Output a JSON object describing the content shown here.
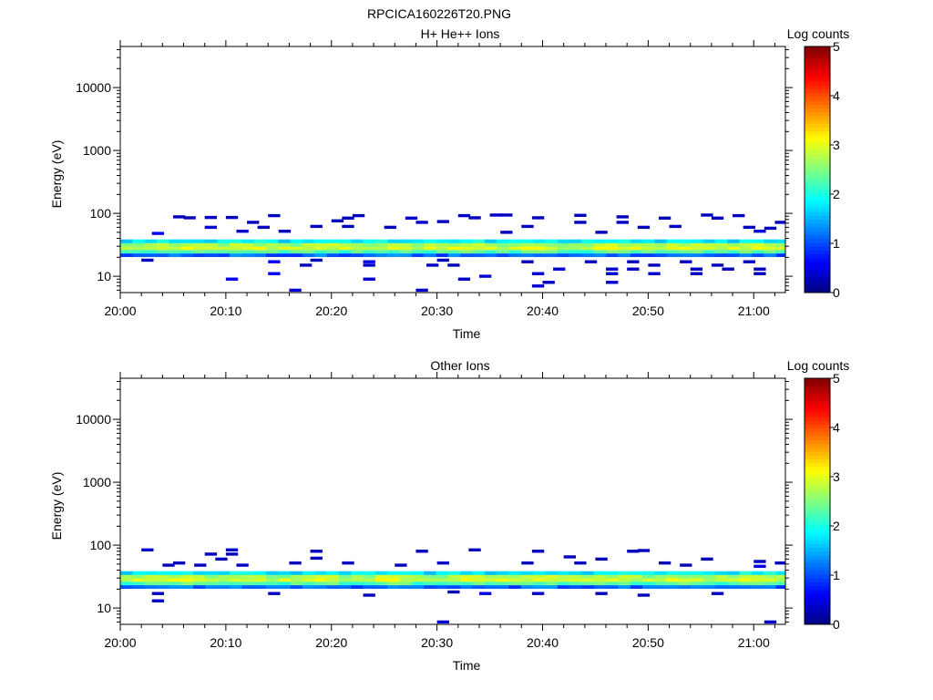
{
  "title": "RPCICA160226T20.PNG",
  "chart_data": [
    {
      "type": "heatmap",
      "title": "H+ He++ Ions",
      "xlabel": "Time",
      "ylabel": "Energy (eV)",
      "x_ticks": [
        "20:00",
        "20:10",
        "20:20",
        "20:30",
        "20:40",
        "20:50",
        "21:00"
      ],
      "x_range": [
        "20:00",
        "21:03"
      ],
      "y_scale": "log",
      "y_range": [
        5.5,
        45000
      ],
      "y_ticks": [
        "10",
        "100",
        "1000",
        "10000"
      ],
      "colorbar": {
        "label": "Log counts",
        "ticks": [
          "0",
          "1",
          "2",
          "3",
          "4",
          "5"
        ],
        "range": [
          0,
          5
        ],
        "colormap": "jet"
      },
      "band": {
        "energy_low_eV": 20,
        "energy_high_eV": 40,
        "peak_energy_eV": 29,
        "peak_log_counts": 3.0
      },
      "sporadic_points": [
        {
          "t": "20:02",
          "e": 18,
          "v": 0.3
        },
        {
          "t": "20:03",
          "e": 48,
          "v": 0.6
        },
        {
          "t": "20:05",
          "e": 88,
          "v": 0.3
        },
        {
          "t": "20:06",
          "e": 85,
          "v": 0.3
        },
        {
          "t": "20:08",
          "e": 86,
          "v": 0.3
        },
        {
          "t": "20:08",
          "e": 60,
          "v": 0.4
        },
        {
          "t": "20:10",
          "e": 9,
          "v": 0.6
        },
        {
          "t": "20:10",
          "e": 86,
          "v": 0.3
        },
        {
          "t": "20:11",
          "e": 52,
          "v": 0.4
        },
        {
          "t": "20:12",
          "e": 72,
          "v": 0.3
        },
        {
          "t": "20:13",
          "e": 60,
          "v": 0.3
        },
        {
          "t": "20:14",
          "e": 92,
          "v": 0.3
        },
        {
          "t": "20:14",
          "e": 17,
          "v": 0.6
        },
        {
          "t": "20:14",
          "e": 11,
          "v": 0.6
        },
        {
          "t": "20:15",
          "e": 52,
          "v": 0.3
        },
        {
          "t": "20:16",
          "e": 6,
          "v": 0.4
        },
        {
          "t": "20:17",
          "e": 15,
          "v": 0.3
        },
        {
          "t": "20:18",
          "e": 62,
          "v": 0.3
        },
        {
          "t": "20:18",
          "e": 18,
          "v": 0.3
        },
        {
          "t": "20:20",
          "e": 76,
          "v": 0.3
        },
        {
          "t": "20:21",
          "e": 84,
          "v": 0.3
        },
        {
          "t": "20:21",
          "e": 62,
          "v": 0.3
        },
        {
          "t": "20:22",
          "e": 92,
          "v": 0.3
        },
        {
          "t": "20:23",
          "e": 17,
          "v": 0.5
        },
        {
          "t": "20:23",
          "e": 15,
          "v": 0.4
        },
        {
          "t": "20:23",
          "e": 9,
          "v": 0.4
        },
        {
          "t": "20:25",
          "e": 60,
          "v": 0.3
        },
        {
          "t": "20:27",
          "e": 84,
          "v": 0.4
        },
        {
          "t": "20:28",
          "e": 72,
          "v": 0.4
        },
        {
          "t": "20:28",
          "e": 6,
          "v": 0.4
        },
        {
          "t": "20:29",
          "e": 15,
          "v": 0.3
        },
        {
          "t": "20:30",
          "e": 74,
          "v": 0.3
        },
        {
          "t": "20:30",
          "e": 18,
          "v": 0.3
        },
        {
          "t": "20:31",
          "e": 15,
          "v": 0.3
        },
        {
          "t": "20:32",
          "e": 9,
          "v": 0.4
        },
        {
          "t": "20:32",
          "e": 92,
          "v": 0.4
        },
        {
          "t": "20:33",
          "e": 85,
          "v": 0.3
        },
        {
          "t": "20:34",
          "e": 10,
          "v": 0.4
        },
        {
          "t": "20:35",
          "e": 94,
          "v": 0.4
        },
        {
          "t": "20:36",
          "e": 94,
          "v": 0.3
        },
        {
          "t": "20:36",
          "e": 50,
          "v": 0.3
        },
        {
          "t": "20:38",
          "e": 17,
          "v": 0.3
        },
        {
          "t": "20:38",
          "e": 62,
          "v": 0.3
        },
        {
          "t": "20:39",
          "e": 85,
          "v": 0.3
        },
        {
          "t": "20:39",
          "e": 11,
          "v": 0.4
        },
        {
          "t": "20:39",
          "e": 7,
          "v": 0.4
        },
        {
          "t": "20:40",
          "e": 8,
          "v": 0.3
        },
        {
          "t": "20:41",
          "e": 13,
          "v": 0.4
        },
        {
          "t": "20:43",
          "e": 93,
          "v": 0.3
        },
        {
          "t": "20:43",
          "e": 72,
          "v": 0.3
        },
        {
          "t": "20:44",
          "e": 17,
          "v": 0.3
        },
        {
          "t": "20:45",
          "e": 50,
          "v": 0.3
        },
        {
          "t": "20:46",
          "e": 13,
          "v": 0.4
        },
        {
          "t": "20:46",
          "e": 11,
          "v": 0.4
        },
        {
          "t": "20:46",
          "e": 8,
          "v": 0.4
        },
        {
          "t": "20:47",
          "e": 88,
          "v": 0.3
        },
        {
          "t": "20:47",
          "e": 72,
          "v": 0.3
        },
        {
          "t": "20:48",
          "e": 17,
          "v": 0.3
        },
        {
          "t": "20:48",
          "e": 13,
          "v": 0.3
        },
        {
          "t": "20:49",
          "e": 60,
          "v": 0.3
        },
        {
          "t": "20:50",
          "e": 15,
          "v": 0.3
        },
        {
          "t": "20:50",
          "e": 11,
          "v": 0.4
        },
        {
          "t": "20:51",
          "e": 84,
          "v": 0.3
        },
        {
          "t": "20:52",
          "e": 62,
          "v": 0.3
        },
        {
          "t": "20:53",
          "e": 17,
          "v": 0.3
        },
        {
          "t": "20:54",
          "e": 13,
          "v": 0.3
        },
        {
          "t": "20:55",
          "e": 94,
          "v": 0.3
        },
        {
          "t": "20:56",
          "e": 84,
          "v": 0.3
        },
        {
          "t": "20:56",
          "e": 15,
          "v": 0.3
        },
        {
          "t": "20:57",
          "e": 13,
          "v": 0.3
        },
        {
          "t": "20:58",
          "e": 92,
          "v": 0.3
        },
        {
          "t": "20:59",
          "e": 60,
          "v": 0.3
        },
        {
          "t": "20:59",
          "e": 17,
          "v": 0.3
        },
        {
          "t": "21:00",
          "e": 13,
          "v": 0.3
        },
        {
          "t": "21:00",
          "e": 11,
          "v": 0.3
        },
        {
          "t": "21:00",
          "e": 52,
          "v": 0.4
        },
        {
          "t": "21:01",
          "e": 58,
          "v": 0.3
        },
        {
          "t": "21:02",
          "e": 72,
          "v": 0.3
        },
        {
          "t": "20:54",
          "e": 11,
          "v": 0.3
        }
      ]
    },
    {
      "type": "heatmap",
      "title": "Other Ions",
      "xlabel": "Time",
      "ylabel": "Energy (eV)",
      "x_ticks": [
        "20:00",
        "20:10",
        "20:20",
        "20:30",
        "20:40",
        "20:50",
        "21:00"
      ],
      "x_range": [
        "20:00",
        "21:03"
      ],
      "y_scale": "log",
      "y_range": [
        5.5,
        45000
      ],
      "y_ticks": [
        "10",
        "100",
        "1000",
        "10000"
      ],
      "colorbar": {
        "label": "Log counts",
        "ticks": [
          "0",
          "1",
          "2",
          "3",
          "4",
          "5"
        ],
        "range": [
          0,
          5
        ],
        "colormap": "jet"
      },
      "band": {
        "energy_low_eV": 20,
        "energy_high_eV": 40,
        "peak_energy_eV": 29,
        "peak_log_counts": 3.0
      },
      "sporadic_points": [
        {
          "t": "20:02",
          "e": 84,
          "v": 0.4
        },
        {
          "t": "20:03",
          "e": 17,
          "v": 0.3
        },
        {
          "t": "20:03",
          "e": 13,
          "v": 0.4
        },
        {
          "t": "20:04",
          "e": 48,
          "v": 0.3
        },
        {
          "t": "20:05",
          "e": 52,
          "v": 0.3
        },
        {
          "t": "20:07",
          "e": 48,
          "v": 0.3
        },
        {
          "t": "20:08",
          "e": 72,
          "v": 0.3
        },
        {
          "t": "20:09",
          "e": 60,
          "v": 0.3
        },
        {
          "t": "20:10",
          "e": 84,
          "v": 0.4
        },
        {
          "t": "20:10",
          "e": 72,
          "v": 0.3
        },
        {
          "t": "20:11",
          "e": 48,
          "v": 0.3
        },
        {
          "t": "20:14",
          "e": 17,
          "v": 0.3
        },
        {
          "t": "20:16",
          "e": 52,
          "v": 0.3
        },
        {
          "t": "20:18",
          "e": 80,
          "v": 0.3
        },
        {
          "t": "20:18",
          "e": 62,
          "v": 0.3
        },
        {
          "t": "20:21",
          "e": 52,
          "v": 0.3
        },
        {
          "t": "20:23",
          "e": 16,
          "v": 0.3
        },
        {
          "t": "20:26",
          "e": 48,
          "v": 0.3
        },
        {
          "t": "20:28",
          "e": 80,
          "v": 0.3
        },
        {
          "t": "20:30",
          "e": 52,
          "v": 0.3
        },
        {
          "t": "20:31",
          "e": 18,
          "v": 0.3
        },
        {
          "t": "20:30",
          "e": 6,
          "v": 0.4
        },
        {
          "t": "20:33",
          "e": 84,
          "v": 0.3
        },
        {
          "t": "20:34",
          "e": 17,
          "v": 0.5
        },
        {
          "t": "20:38",
          "e": 52,
          "v": 0.3
        },
        {
          "t": "20:39",
          "e": 17,
          "v": 0.3
        },
        {
          "t": "20:39",
          "e": 80,
          "v": 0.3
        },
        {
          "t": "20:42",
          "e": 65,
          "v": 0.3
        },
        {
          "t": "20:43",
          "e": 52,
          "v": 0.3
        },
        {
          "t": "20:45",
          "e": 60,
          "v": 0.3
        },
        {
          "t": "20:45",
          "e": 17,
          "v": 0.3
        },
        {
          "t": "20:48",
          "e": 80,
          "v": 0.3
        },
        {
          "t": "20:49",
          "e": 82,
          "v": 0.3
        },
        {
          "t": "20:49",
          "e": 16,
          "v": 0.3
        },
        {
          "t": "20:51",
          "e": 52,
          "v": 0.3
        },
        {
          "t": "20:53",
          "e": 48,
          "v": 0.3
        },
        {
          "t": "20:55",
          "e": 60,
          "v": 0.3
        },
        {
          "t": "20:56",
          "e": 17,
          "v": 0.3
        },
        {
          "t": "21:00",
          "e": 55,
          "v": 0.3
        },
        {
          "t": "21:00",
          "e": 46,
          "v": 0.5
        },
        {
          "t": "21:01",
          "e": 6,
          "v": 0.4
        },
        {
          "t": "21:02",
          "e": 52,
          "v": 0.3
        }
      ]
    }
  ]
}
